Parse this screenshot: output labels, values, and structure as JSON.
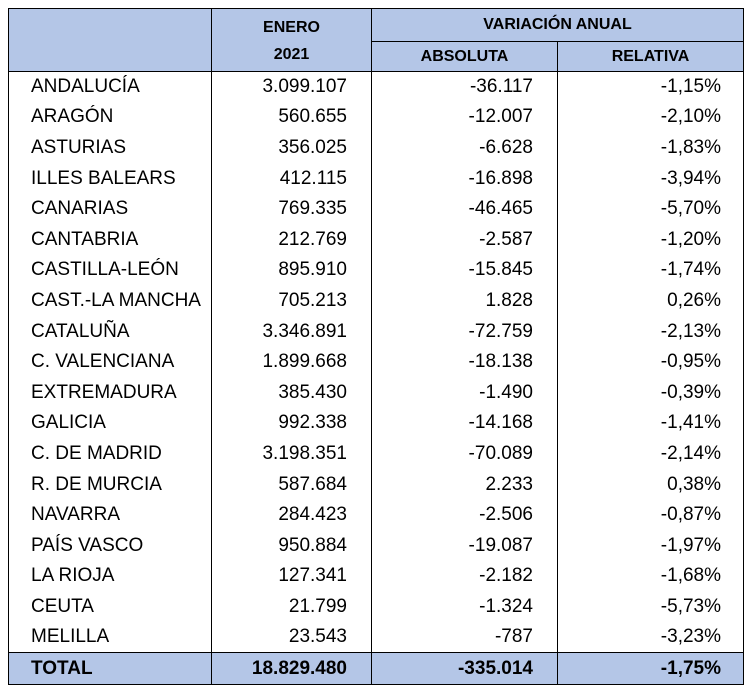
{
  "header": {
    "enero_line1": "ENERO",
    "enero_line2": "2021",
    "variacion": "VARIACIÓN ANUAL",
    "absoluta": "ABSOLUTA",
    "relativa": "RELATIVA"
  },
  "rows": [
    {
      "name": "ANDALUCÍA",
      "enero": "3.099.107",
      "absoluta": "-36.117",
      "relativa": "-1,15%"
    },
    {
      "name": "ARAGÓN",
      "enero": "560.655",
      "absoluta": "-12.007",
      "relativa": "-2,10%"
    },
    {
      "name": "ASTURIAS",
      "enero": "356.025",
      "absoluta": "-6.628",
      "relativa": "-1,83%"
    },
    {
      "name": "ILLES BALEARS",
      "enero": "412.115",
      "absoluta": "-16.898",
      "relativa": "-3,94%"
    },
    {
      "name": "CANARIAS",
      "enero": "769.335",
      "absoluta": "-46.465",
      "relativa": "-5,70%"
    },
    {
      "name": "CANTABRIA",
      "enero": "212.769",
      "absoluta": "-2.587",
      "relativa": "-1,20%"
    },
    {
      "name": "CASTILLA-LEÓN",
      "enero": "895.910",
      "absoluta": "-15.845",
      "relativa": "-1,74%"
    },
    {
      "name": "CAST.-LA MANCHA",
      "enero": "705.213",
      "absoluta": "1.828",
      "relativa": "0,26%"
    },
    {
      "name": "CATALUÑA",
      "enero": "3.346.891",
      "absoluta": "-72.759",
      "relativa": "-2,13%"
    },
    {
      "name": "C. VALENCIANA",
      "enero": "1.899.668",
      "absoluta": "-18.138",
      "relativa": "-0,95%"
    },
    {
      "name": "EXTREMADURA",
      "enero": "385.430",
      "absoluta": "-1.490",
      "relativa": "-0,39%"
    },
    {
      "name": "GALICIA",
      "enero": "992.338",
      "absoluta": "-14.168",
      "relativa": "-1,41%"
    },
    {
      "name": "C. DE MADRID",
      "enero": "3.198.351",
      "absoluta": "-70.089",
      "relativa": "-2,14%"
    },
    {
      "name": "R. DE MURCIA",
      "enero": "587.684",
      "absoluta": "2.233",
      "relativa": "0,38%"
    },
    {
      "name": "NAVARRA",
      "enero": "284.423",
      "absoluta": "-2.506",
      "relativa": "-0,87%"
    },
    {
      "name": "PAÍS VASCO",
      "enero": "950.884",
      "absoluta": "-19.087",
      "relativa": "-1,97%"
    },
    {
      "name": "LA RIOJA",
      "enero": "127.341",
      "absoluta": "-2.182",
      "relativa": "-1,68%"
    },
    {
      "name": "CEUTA",
      "enero": "21.799",
      "absoluta": "-1.324",
      "relativa": "-5,73%"
    },
    {
      "name": "MELILLA",
      "enero": "23.543",
      "absoluta": "-787",
      "relativa": "-3,23%"
    }
  ],
  "total": {
    "name": "TOTAL",
    "enero": "18.829.480",
    "absoluta": "-335.014",
    "relativa": "-1,75%"
  },
  "colors": {
    "header_bg": "#b4c6e7",
    "border": "#000000"
  }
}
